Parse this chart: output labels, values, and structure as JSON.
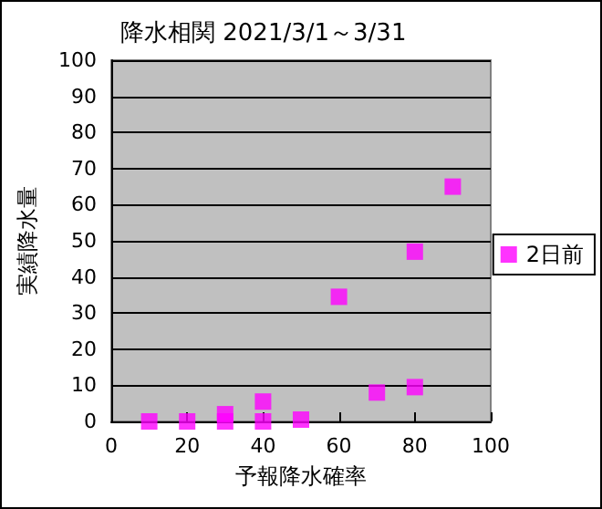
{
  "chart_data": {
    "type": "scatter",
    "title": "降水相関 2021/3/1～3/31",
    "xlabel": "予報降水確率",
    "ylabel": "実績降水量",
    "x": [
      10,
      20,
      30,
      30,
      40,
      40,
      50,
      60,
      70,
      80,
      80,
      90
    ],
    "series": [
      {
        "name": "2日前",
        "color": "#ff00ff",
        "values": [
          0,
          0,
          0,
          2,
          0,
          5.5,
          0.5,
          34.5,
          8,
          47,
          9.5,
          65
        ]
      }
    ],
    "xlim": [
      0,
      100
    ],
    "xticks": [
      0,
      20,
      40,
      60,
      80,
      100
    ],
    "ylim": [
      0,
      100
    ],
    "yticks": [
      0,
      10,
      20,
      30,
      40,
      50,
      60,
      70,
      80,
      90,
      100
    ],
    "grid": "y",
    "legend": "right",
    "marker": "square"
  }
}
